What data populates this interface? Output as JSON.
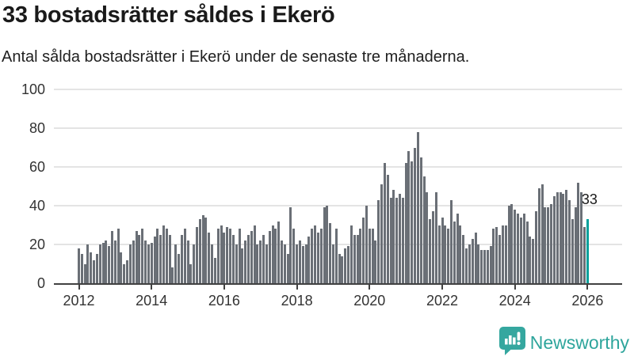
{
  "header": {
    "title": "33 bostadsrätter såldes i Ekerö",
    "subtitle": "Antal sålda bostadsrätter i Ekerö under de senaste tre månaderna."
  },
  "chart_data": {
    "type": "bar",
    "title": "33 bostadsrätter såldes i Ekerö",
    "subtitle": "Antal sålda bostadsrätter i Ekerö under de senaste tre månaderna.",
    "x_start": "2012-01",
    "x_end": "2026-01",
    "frequency": "monthly",
    "ylim": [
      0,
      100
    ],
    "yticks": [
      0,
      20,
      40,
      60,
      80,
      100
    ],
    "xticks": [
      2012,
      2014,
      2016,
      2018,
      2020,
      2022,
      2024,
      2026
    ],
    "grid": true,
    "bar_color": "#6a6f76",
    "values": [
      18,
      15,
      10,
      20,
      16,
      12,
      15,
      20,
      21,
      22,
      19,
      27,
      22,
      28,
      16,
      10,
      12,
      20,
      22,
      27,
      25,
      28,
      22,
      20,
      21,
      24,
      28,
      25,
      30,
      28,
      25,
      8,
      20,
      15,
      25,
      28,
      22,
      10,
      20,
      29,
      33,
      35,
      34,
      26,
      20,
      13,
      28,
      30,
      26,
      29,
      28,
      25,
      20,
      28,
      18,
      22,
      25,
      27,
      30,
      20,
      22,
      25,
      20,
      27,
      30,
      28,
      32,
      22,
      20,
      15,
      39,
      28,
      20,
      22,
      19,
      20,
      24,
      28,
      30,
      26,
      28,
      39,
      40,
      31,
      20,
      28,
      15,
      14,
      18,
      19,
      30,
      25,
      25,
      28,
      34,
      40,
      28,
      28,
      22,
      43,
      51,
      62,
      56,
      44,
      48,
      44,
      46,
      44,
      62,
      68,
      63,
      70,
      78,
      65,
      55,
      47,
      33,
      37,
      47,
      30,
      34,
      30,
      28,
      43,
      32,
      36,
      30,
      25,
      18,
      20,
      23,
      26,
      20,
      17,
      17,
      17,
      19,
      28,
      29,
      25,
      30,
      30,
      40,
      41,
      38,
      36,
      34,
      36,
      32,
      24,
      23,
      37,
      49,
      51,
      39,
      39,
      41,
      45,
      47,
      47,
      46,
      48,
      43,
      33,
      39,
      52,
      47,
      29,
      33
    ],
    "highlight": {
      "index": 168,
      "value": 33,
      "label": "33",
      "color": "#00a09b"
    }
  },
  "logo": {
    "name": "Newsworthy",
    "icon": "newsworthy-speech-bubble-barchart-icon",
    "color": "#2ea59c",
    "icon_color": "#35a79f"
  },
  "colors": {
    "bar": "#6a6f76",
    "highlight": "#00a09b",
    "gridline": "#e4e4e4",
    "axis": "#414141",
    "title_text": "#1a1a1a"
  }
}
